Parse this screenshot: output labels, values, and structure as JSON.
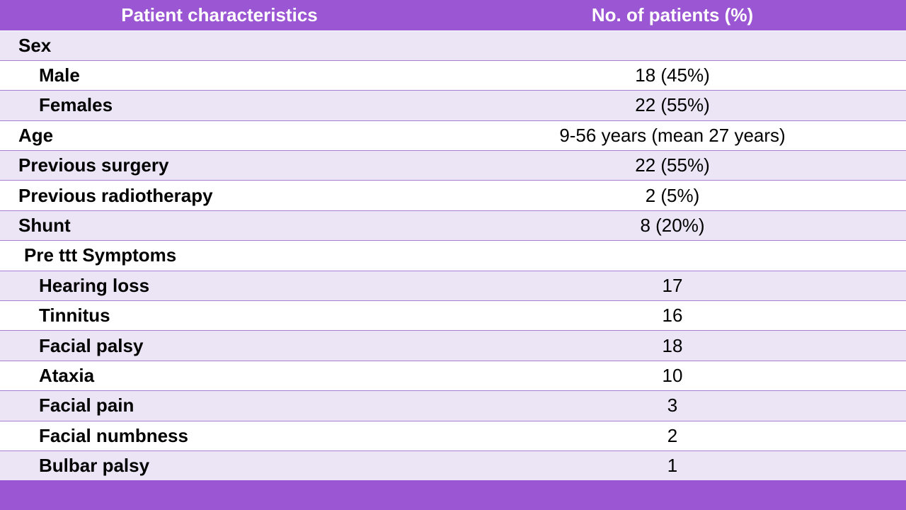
{
  "table": {
    "headers": [
      "Patient characteristics",
      "No. of patients (%)"
    ],
    "rows": [
      {
        "label": "Sex",
        "value": "",
        "indent": "none"
      },
      {
        "label": "Male",
        "value": "18 (45%)",
        "indent": "deep"
      },
      {
        "label": "Females",
        "value": "22 (55%)",
        "indent": "deep"
      },
      {
        "label": "Age",
        "value": "9-56 years (mean 27 years)",
        "indent": "none"
      },
      {
        "label": "Previous surgery",
        "value": "22 (55%)",
        "indent": "none"
      },
      {
        "label": "Previous radiotherapy",
        "value": "2 (5%)",
        "indent": "none"
      },
      {
        "label": "Shunt",
        "value": "8 (20%)",
        "indent": "none"
      },
      {
        "label": "Pre ttt Symptoms",
        "value": "",
        "indent": "small"
      },
      {
        "label": "Hearing loss",
        "value": "17",
        "indent": "deep"
      },
      {
        "label": "Tinnitus",
        "value": "16",
        "indent": "deep"
      },
      {
        "label": "Facial palsy",
        "value": "18",
        "indent": "deep"
      },
      {
        "label": "Ataxia",
        "value": "10",
        "indent": "deep"
      },
      {
        "label": "Facial pain",
        "value": "3",
        "indent": "deep"
      },
      {
        "label": "Facial numbness",
        "value": "2",
        "indent": "deep"
      },
      {
        "label": "Bulbar palsy",
        "value": "1",
        "indent": "deep"
      }
    ]
  },
  "colors": {
    "header_bg": "#9b57d3",
    "row_shade": "#ebe5f5",
    "row_plain": "#ffffff",
    "row_border": "#a97fd6"
  }
}
